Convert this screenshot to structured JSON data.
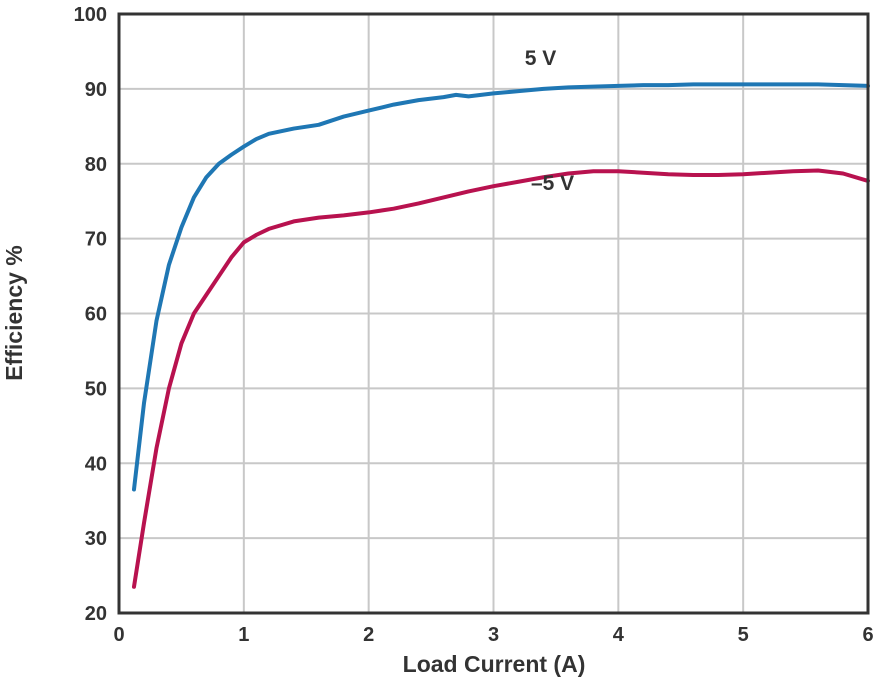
{
  "chart_data": {
    "type": "line",
    "xlabel": "Load Current (A)",
    "ylabel": "Efficiency %",
    "xlim": [
      0,
      6
    ],
    "ylim": [
      20,
      100
    ],
    "xticks": [
      0,
      1,
      2,
      3,
      4,
      5,
      6
    ],
    "yticks": [
      20,
      30,
      40,
      50,
      60,
      70,
      80,
      90,
      100
    ],
    "grid": true,
    "series": [
      {
        "name": "5 V",
        "color": "#1f77b4",
        "label_at": [
          3.25,
          93.2
        ],
        "x": [
          0.12,
          0.2,
          0.3,
          0.4,
          0.5,
          0.6,
          0.7,
          0.8,
          0.9,
          1.0,
          1.1,
          1.2,
          1.4,
          1.6,
          1.8,
          2.0,
          2.2,
          2.4,
          2.6,
          2.7,
          2.8,
          3.0,
          3.2,
          3.4,
          3.6,
          3.8,
          4.0,
          4.2,
          4.4,
          4.6,
          4.8,
          5.0,
          5.2,
          5.4,
          5.6,
          5.8,
          6.0
        ],
        "y": [
          36.5,
          48,
          59,
          66.5,
          71.5,
          75.5,
          78.2,
          80.0,
          81.2,
          82.3,
          83.3,
          84.0,
          84.7,
          85.2,
          86.3,
          87.1,
          87.9,
          88.5,
          88.9,
          89.2,
          89.0,
          89.4,
          89.7,
          90.0,
          90.2,
          90.3,
          90.4,
          90.5,
          90.5,
          90.6,
          90.6,
          90.6,
          90.6,
          90.6,
          90.6,
          90.5,
          90.4
        ]
      },
      {
        "name": "–5 V",
        "color": "#b8124f",
        "label_at": [
          3.3,
          76.5
        ],
        "x": [
          0.12,
          0.2,
          0.3,
          0.4,
          0.5,
          0.6,
          0.7,
          0.8,
          0.9,
          1.0,
          1.1,
          1.2,
          1.4,
          1.6,
          1.8,
          2.0,
          2.2,
          2.4,
          2.6,
          2.8,
          3.0,
          3.2,
          3.4,
          3.6,
          3.8,
          4.0,
          4.2,
          4.4,
          4.6,
          4.8,
          5.0,
          5.2,
          5.4,
          5.6,
          5.8,
          6.0
        ],
        "y": [
          23.5,
          32,
          42,
          50,
          56,
          60,
          62.5,
          65.0,
          67.5,
          69.5,
          70.5,
          71.3,
          72.3,
          72.8,
          73.1,
          73.5,
          74.0,
          74.7,
          75.5,
          76.3,
          77.0,
          77.6,
          78.2,
          78.7,
          79.0,
          79.0,
          78.8,
          78.6,
          78.5,
          78.5,
          78.6,
          78.8,
          79.0,
          79.1,
          78.7,
          77.7
        ]
      }
    ]
  }
}
